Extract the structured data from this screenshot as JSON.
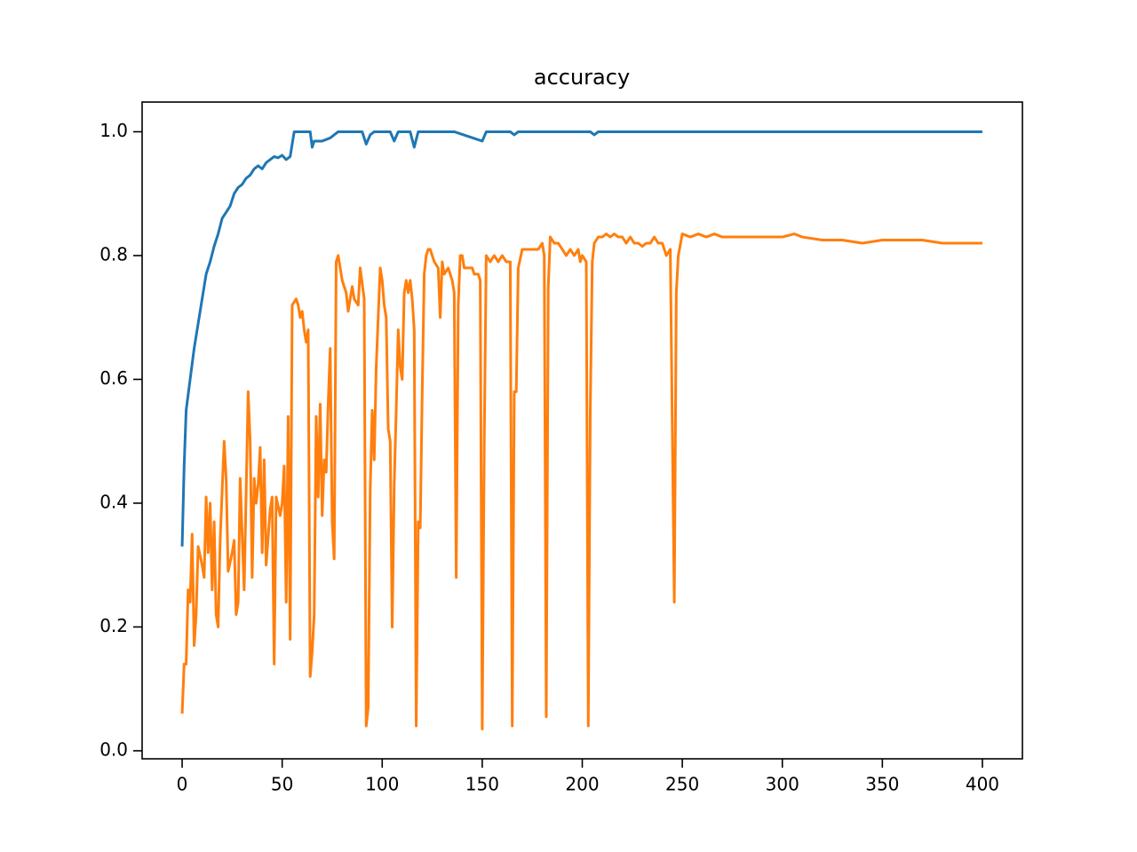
{
  "chart_data": {
    "type": "line",
    "title": "accuracy",
    "xlim": [
      -20,
      420
    ],
    "xticks": [
      0,
      50,
      100,
      150,
      200,
      250,
      300,
      350,
      400
    ],
    "ylim": [
      -0.013,
      1.048
    ],
    "yticks": [
      {
        "value": 0,
        "label": "0.0"
      },
      {
        "value": 0.2,
        "label": "0.2"
      },
      {
        "value": 0.4,
        "label": "0.4"
      },
      {
        "value": 0.6,
        "label": "0.6"
      },
      {
        "value": 0.8,
        "label": "0.8"
      },
      {
        "value": 1,
        "label": "1.0"
      }
    ],
    "series": [
      {
        "color": "#1f77b4",
        "x": [
          0,
          1,
          2,
          4,
          6,
          8,
          10,
          12,
          14,
          16,
          18,
          20,
          22,
          24,
          26,
          28,
          30,
          32,
          34,
          36,
          38,
          40,
          42,
          44,
          46,
          48,
          50,
          52,
          54,
          56,
          60,
          64,
          65,
          66,
          70,
          74,
          76,
          78,
          90,
          92,
          94,
          96,
          104,
          106,
          108,
          114,
          116,
          118,
          136,
          150,
          152,
          164,
          166,
          168,
          204,
          206,
          208,
          400
        ],
        "values": [
          0.33,
          0.46,
          0.55,
          0.6,
          0.65,
          0.69,
          0.73,
          0.77,
          0.79,
          0.815,
          0.835,
          0.86,
          0.87,
          0.88,
          0.9,
          0.91,
          0.915,
          0.925,
          0.93,
          0.94,
          0.945,
          0.94,
          0.95,
          0.955,
          0.96,
          0.958,
          0.962,
          0.955,
          0.96,
          1.0,
          1.0,
          1.0,
          0.975,
          0.985,
          0.985,
          0.99,
          0.995,
          1.0,
          1.0,
          0.98,
          0.995,
          1.0,
          1.0,
          0.985,
          1.0,
          1.0,
          0.975,
          1.0,
          1.0,
          0.985,
          1.0,
          1.0,
          0.995,
          1.0,
          1.0,
          0.995,
          1.0,
          1.0
        ]
      },
      {
        "color": "#ff7f0e",
        "x": [
          0,
          1,
          2,
          3,
          4,
          5,
          6,
          7,
          8,
          10,
          11,
          12,
          13,
          14,
          15,
          16,
          17,
          18,
          19,
          21,
          22,
          23,
          25,
          26,
          27,
          28,
          29,
          31,
          33,
          34,
          35,
          36,
          37,
          38,
          39,
          40,
          41,
          42,
          44,
          45,
          46,
          47,
          49,
          50,
          51,
          52,
          53,
          54,
          55,
          57,
          58,
          59,
          60,
          61,
          62,
          63,
          64,
          65,
          66,
          67,
          68,
          69,
          70,
          71,
          72,
          73,
          74,
          75,
          76,
          77,
          78,
          80,
          82,
          83,
          84,
          85,
          86,
          88,
          89,
          91,
          92,
          93,
          94,
          95,
          96,
          97,
          99,
          100,
          101,
          102,
          103,
          104,
          105,
          106,
          107,
          108,
          109,
          110,
          111,
          112,
          113,
          114,
          115,
          116,
          117,
          118,
          119,
          120,
          121,
          122,
          123,
          124,
          126,
          128,
          129,
          130,
          131,
          133,
          135,
          136,
          137,
          138,
          139,
          140,
          141,
          143,
          145,
          146,
          148,
          149,
          150,
          151,
          152,
          154,
          156,
          158,
          160,
          162,
          164,
          165,
          166,
          167,
          168,
          170,
          172,
          174,
          176,
          178,
          180,
          181,
          182,
          183,
          184,
          186,
          188,
          190,
          192,
          194,
          196,
          198,
          199,
          200,
          202,
          203,
          204,
          205,
          206,
          208,
          210,
          212,
          214,
          216,
          218,
          220,
          222,
          224,
          226,
          228,
          230,
          232,
          234,
          236,
          238,
          240,
          242,
          244,
          246,
          247,
          248,
          250,
          254,
          258,
          262,
          266,
          270,
          280,
          290,
          300,
          306,
          310,
          320,
          330,
          340,
          350,
          360,
          370,
          380,
          390,
          395,
          400
        ],
        "values": [
          0.06,
          0.14,
          0.14,
          0.26,
          0.24,
          0.35,
          0.17,
          0.22,
          0.33,
          0.3,
          0.28,
          0.41,
          0.32,
          0.4,
          0.26,
          0.37,
          0.22,
          0.2,
          0.34,
          0.5,
          0.44,
          0.29,
          0.32,
          0.34,
          0.22,
          0.24,
          0.44,
          0.26,
          0.58,
          0.5,
          0.28,
          0.44,
          0.4,
          0.43,
          0.49,
          0.32,
          0.47,
          0.3,
          0.39,
          0.41,
          0.14,
          0.41,
          0.38,
          0.4,
          0.46,
          0.24,
          0.54,
          0.18,
          0.72,
          0.73,
          0.72,
          0.7,
          0.71,
          0.68,
          0.66,
          0.68,
          0.12,
          0.16,
          0.22,
          0.54,
          0.41,
          0.56,
          0.38,
          0.47,
          0.45,
          0.56,
          0.65,
          0.37,
          0.31,
          0.79,
          0.8,
          0.76,
          0.74,
          0.71,
          0.73,
          0.75,
          0.73,
          0.72,
          0.78,
          0.73,
          0.04,
          0.07,
          0.42,
          0.55,
          0.47,
          0.62,
          0.78,
          0.76,
          0.72,
          0.7,
          0.52,
          0.5,
          0.2,
          0.43,
          0.55,
          0.68,
          0.62,
          0.6,
          0.74,
          0.76,
          0.74,
          0.76,
          0.73,
          0.68,
          0.04,
          0.37,
          0.36,
          0.58,
          0.77,
          0.8,
          0.81,
          0.81,
          0.79,
          0.78,
          0.7,
          0.79,
          0.77,
          0.78,
          0.76,
          0.74,
          0.28,
          0.72,
          0.8,
          0.8,
          0.78,
          0.78,
          0.78,
          0.77,
          0.77,
          0.76,
          0.035,
          0.5,
          0.8,
          0.79,
          0.8,
          0.79,
          0.8,
          0.79,
          0.79,
          0.04,
          0.58,
          0.58,
          0.78,
          0.81,
          0.81,
          0.81,
          0.81,
          0.81,
          0.82,
          0.8,
          0.055,
          0.75,
          0.83,
          0.82,
          0.82,
          0.81,
          0.8,
          0.81,
          0.8,
          0.81,
          0.79,
          0.8,
          0.79,
          0.04,
          0.55,
          0.79,
          0.82,
          0.83,
          0.83,
          0.835,
          0.83,
          0.835,
          0.83,
          0.83,
          0.82,
          0.83,
          0.82,
          0.82,
          0.815,
          0.82,
          0.82,
          0.83,
          0.82,
          0.82,
          0.8,
          0.81,
          0.24,
          0.74,
          0.8,
          0.835,
          0.83,
          0.835,
          0.83,
          0.835,
          0.83,
          0.83,
          0.83,
          0.83,
          0.835,
          0.83,
          0.825,
          0.825,
          0.82,
          0.825,
          0.825,
          0.825,
          0.82,
          0.82,
          0.82,
          0.82
        ]
      }
    ]
  }
}
